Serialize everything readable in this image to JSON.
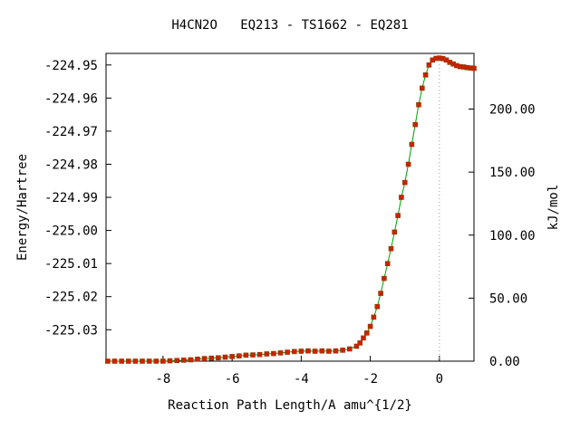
{
  "chart_data": {
    "type": "line",
    "title": "H4CN2O   EQ213 - TS1662 - EQ281",
    "xlabel": "Reaction Path Length/A amu^{1/2}",
    "ylabel": "Energy/Hartree",
    "y2label": "kJ/mol",
    "xlim": [
      -9.65,
      1.0
    ],
    "ylim": [
      -225.0395,
      -224.9465
    ],
    "y2_zero_hartree": -225.0395,
    "hartree_to_kj": 2625.5,
    "x_ticks": [
      -8,
      -6,
      -4,
      -2,
      0
    ],
    "y_ticks": [
      -224.95,
      -224.96,
      -224.97,
      -224.98,
      -224.99,
      -225.0,
      -225.01,
      -225.02,
      -225.03
    ],
    "y_tick_labels": [
      "-224.95",
      "-224.96",
      "-224.97",
      "-224.98",
      "-224.99",
      "-225.00",
      "-225.01",
      "-225.02",
      "-225.03"
    ],
    "y2_ticks": [
      0,
      50,
      100,
      150,
      200
    ],
    "y2_tick_labels": [
      "0.00",
      "50.00",
      "100.00",
      "150.00",
      "200.00"
    ],
    "x_tick_labels": [
      "-8",
      "-6",
      "-4",
      "-2",
      "0"
    ],
    "ts_marker_x": 0,
    "colors": {
      "line": "#00a000",
      "points": "#cc2200",
      "point_edge": "#8a3a00",
      "marker": "#999999"
    },
    "series": [
      {
        "x": [
          -9.6,
          -9.4,
          -9.2,
          -9.0,
          -8.8,
          -8.6,
          -8.4,
          -8.2,
          -8.0,
          -7.8,
          -7.6,
          -7.4,
          -7.2,
          -7.0,
          -6.8,
          -6.6,
          -6.4,
          -6.2,
          -6.0,
          -5.8,
          -5.6,
          -5.4,
          -5.2,
          -5.0,
          -4.8,
          -4.6,
          -4.4,
          -4.2,
          -4.0,
          -3.8,
          -3.6,
          -3.4,
          -3.2,
          -3.0,
          -2.8,
          -2.6,
          -2.4,
          -2.3,
          -2.2,
          -2.1,
          -2.0,
          -1.9,
          -1.8,
          -1.7,
          -1.6,
          -1.5,
          -1.4,
          -1.3,
          -1.2,
          -1.1,
          -1.0,
          -0.9,
          -0.8,
          -0.7,
          -0.6,
          -0.5,
          -0.4,
          -0.3,
          -0.2,
          -0.1,
          0.0,
          0.1,
          0.2,
          0.3,
          0.4,
          0.5,
          0.6,
          0.7,
          0.8,
          0.9,
          1.0
        ],
        "y": [
          -225.0395,
          -225.0395,
          -225.0395,
          -225.0395,
          -225.0395,
          -225.0395,
          -225.0395,
          -225.0395,
          -225.0395,
          -225.0394,
          -225.0393,
          -225.0392,
          -225.0391,
          -225.0389,
          -225.0387,
          -225.0386,
          -225.0385,
          -225.0383,
          -225.0381,
          -225.0379,
          -225.0377,
          -225.0376,
          -225.0375,
          -225.0373,
          -225.0372,
          -225.037,
          -225.0368,
          -225.0366,
          -225.0365,
          -225.0364,
          -225.0365,
          -225.0364,
          -225.0365,
          -225.0364,
          -225.0362,
          -225.0358,
          -225.035,
          -225.034,
          -225.0325,
          -225.031,
          -225.029,
          -225.0262,
          -225.023,
          -225.019,
          -225.0145,
          -225.01,
          -225.0055,
          -225.0005,
          -224.9955,
          -224.99,
          -224.9855,
          -224.98,
          -224.974,
          -224.968,
          -224.962,
          -224.957,
          -224.953,
          -224.95,
          -224.9485,
          -224.948,
          -224.9479,
          -224.9481,
          -224.9485,
          -224.9492,
          -224.9497,
          -224.9502,
          -224.9505,
          -224.9506,
          -224.9508,
          -224.9509,
          -224.951
        ]
      }
    ]
  }
}
